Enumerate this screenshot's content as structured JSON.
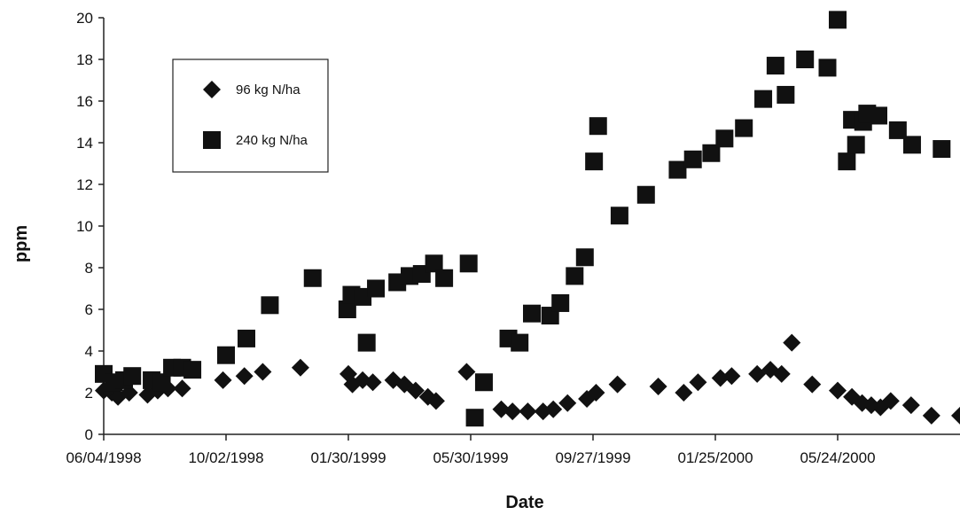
{
  "chart_data": {
    "type": "scatter",
    "title": "",
    "xlabel": "Date",
    "ylabel": "ppm",
    "xlim": [
      "1998-06-04",
      "2000-09-21"
    ],
    "ylim": [
      0,
      20
    ],
    "x_ticks": [
      "06/04/1998",
      "10/02/1998",
      "01/30/1999",
      "05/30/1999",
      "09/27/1999",
      "01/25/2000",
      "05/24/2000"
    ],
    "y_ticks": [
      0,
      2,
      4,
      6,
      8,
      10,
      12,
      14,
      16,
      18,
      20
    ],
    "grid": false,
    "legend": "top-left",
    "series": [
      {
        "name": "96 kg N/ha",
        "marker": "diamond",
        "color": "#111111",
        "points": [
          [
            "1998-06-04",
            2.1
          ],
          [
            "1998-06-12",
            2.0
          ],
          [
            "1998-06-18",
            1.8
          ],
          [
            "1998-06-29",
            2.0
          ],
          [
            "1998-07-17",
            1.9
          ],
          [
            "1998-07-27",
            2.1
          ],
          [
            "1998-08-06",
            2.2
          ],
          [
            "1998-08-20",
            2.2
          ],
          [
            "1998-09-29",
            2.6
          ],
          [
            "1998-10-20",
            2.8
          ],
          [
            "1998-11-07",
            3.0
          ],
          [
            "1998-12-14",
            3.2
          ],
          [
            "1999-01-30",
            2.9
          ],
          [
            "1999-02-03",
            2.4
          ],
          [
            "1999-02-13",
            2.6
          ],
          [
            "1999-02-23",
            2.5
          ],
          [
            "1999-03-15",
            2.6
          ],
          [
            "1999-03-26",
            2.4
          ],
          [
            "1999-04-06",
            2.1
          ],
          [
            "1999-04-18",
            1.8
          ],
          [
            "1999-04-26",
            1.6
          ],
          [
            "1999-05-26",
            3.0
          ],
          [
            "1999-06-29",
            1.2
          ],
          [
            "1999-07-10",
            1.1
          ],
          [
            "1999-07-25",
            1.1
          ],
          [
            "1999-08-09",
            1.1
          ],
          [
            "1999-08-19",
            1.2
          ],
          [
            "1999-09-02",
            1.5
          ],
          [
            "1999-09-21",
            1.7
          ],
          [
            "1999-09-30",
            2.0
          ],
          [
            "1999-10-21",
            2.4
          ],
          [
            "1999-11-30",
            2.3
          ],
          [
            "1999-12-25",
            2.0
          ],
          [
            "2000-01-08",
            2.5
          ],
          [
            "2000-01-30",
            2.7
          ],
          [
            "2000-02-10",
            2.8
          ],
          [
            "2000-03-06",
            2.9
          ],
          [
            "2000-03-19",
            3.1
          ],
          [
            "2000-03-30",
            2.9
          ],
          [
            "2000-04-09",
            4.4
          ],
          [
            "2000-04-29",
            2.4
          ],
          [
            "2000-05-24",
            2.1
          ],
          [
            "2000-06-07",
            1.8
          ],
          [
            "2000-06-17",
            1.5
          ],
          [
            "2000-06-26",
            1.4
          ],
          [
            "2000-07-05",
            1.3
          ],
          [
            "2000-07-15",
            1.6
          ],
          [
            "2000-08-04",
            1.4
          ],
          [
            "2000-08-24",
            0.9
          ],
          [
            "2000-09-21",
            0.9
          ]
        ]
      },
      {
        "name": "240 kg N/ha",
        "marker": "square",
        "color": "#111111",
        "points": [
          [
            "1998-06-04",
            2.9
          ],
          [
            "1998-06-14",
            2.5
          ],
          [
            "1998-06-24",
            2.6
          ],
          [
            "1998-07-02",
            2.8
          ],
          [
            "1998-07-21",
            2.6
          ],
          [
            "1998-07-31",
            2.5
          ],
          [
            "1998-08-10",
            3.2
          ],
          [
            "1998-08-20",
            3.2
          ],
          [
            "1998-08-30",
            3.1
          ],
          [
            "1998-10-02",
            3.8
          ],
          [
            "1998-10-22",
            4.6
          ],
          [
            "1998-11-14",
            6.2
          ],
          [
            "1998-12-26",
            7.5
          ],
          [
            "1999-01-29",
            6.0
          ],
          [
            "1999-02-02",
            6.7
          ],
          [
            "1999-02-13",
            6.6
          ],
          [
            "1999-02-17",
            4.4
          ],
          [
            "1999-02-26",
            7.0
          ],
          [
            "1999-03-19",
            7.3
          ],
          [
            "1999-03-31",
            7.6
          ],
          [
            "1999-04-12",
            7.7
          ],
          [
            "1999-04-24",
            8.2
          ],
          [
            "1999-05-04",
            7.5
          ],
          [
            "1999-05-28",
            8.2
          ],
          [
            "1999-06-03",
            0.8
          ],
          [
            "1999-06-12",
            2.5
          ],
          [
            "1999-07-06",
            4.6
          ],
          [
            "1999-07-17",
            4.4
          ],
          [
            "1999-07-29",
            5.8
          ],
          [
            "1999-08-16",
            5.7
          ],
          [
            "1999-08-26",
            6.3
          ],
          [
            "1999-09-09",
            7.6
          ],
          [
            "1999-09-19",
            8.5
          ],
          [
            "1999-09-28",
            13.1
          ],
          [
            "1999-10-02",
            14.8
          ],
          [
            "1999-10-23",
            10.5
          ],
          [
            "1999-11-18",
            11.5
          ],
          [
            "1999-12-19",
            12.7
          ],
          [
            "2000-01-03",
            13.2
          ],
          [
            "2000-01-21",
            13.5
          ],
          [
            "2000-02-03",
            14.2
          ],
          [
            "2000-02-22",
            14.7
          ],
          [
            "2000-03-12",
            16.1
          ],
          [
            "2000-03-24",
            17.7
          ],
          [
            "2000-04-03",
            16.3
          ],
          [
            "2000-04-22",
            18.0
          ],
          [
            "2000-05-14",
            17.6
          ],
          [
            "2000-05-24",
            19.9
          ],
          [
            "2000-06-02",
            13.1
          ],
          [
            "2000-06-07",
            15.1
          ],
          [
            "2000-06-11",
            13.9
          ],
          [
            "2000-06-18",
            15.0
          ],
          [
            "2000-06-22",
            15.4
          ],
          [
            "2000-07-03",
            15.3
          ],
          [
            "2000-07-22",
            14.6
          ],
          [
            "2000-08-05",
            13.9
          ],
          [
            "2000-09-03",
            13.7
          ]
        ]
      }
    ]
  }
}
